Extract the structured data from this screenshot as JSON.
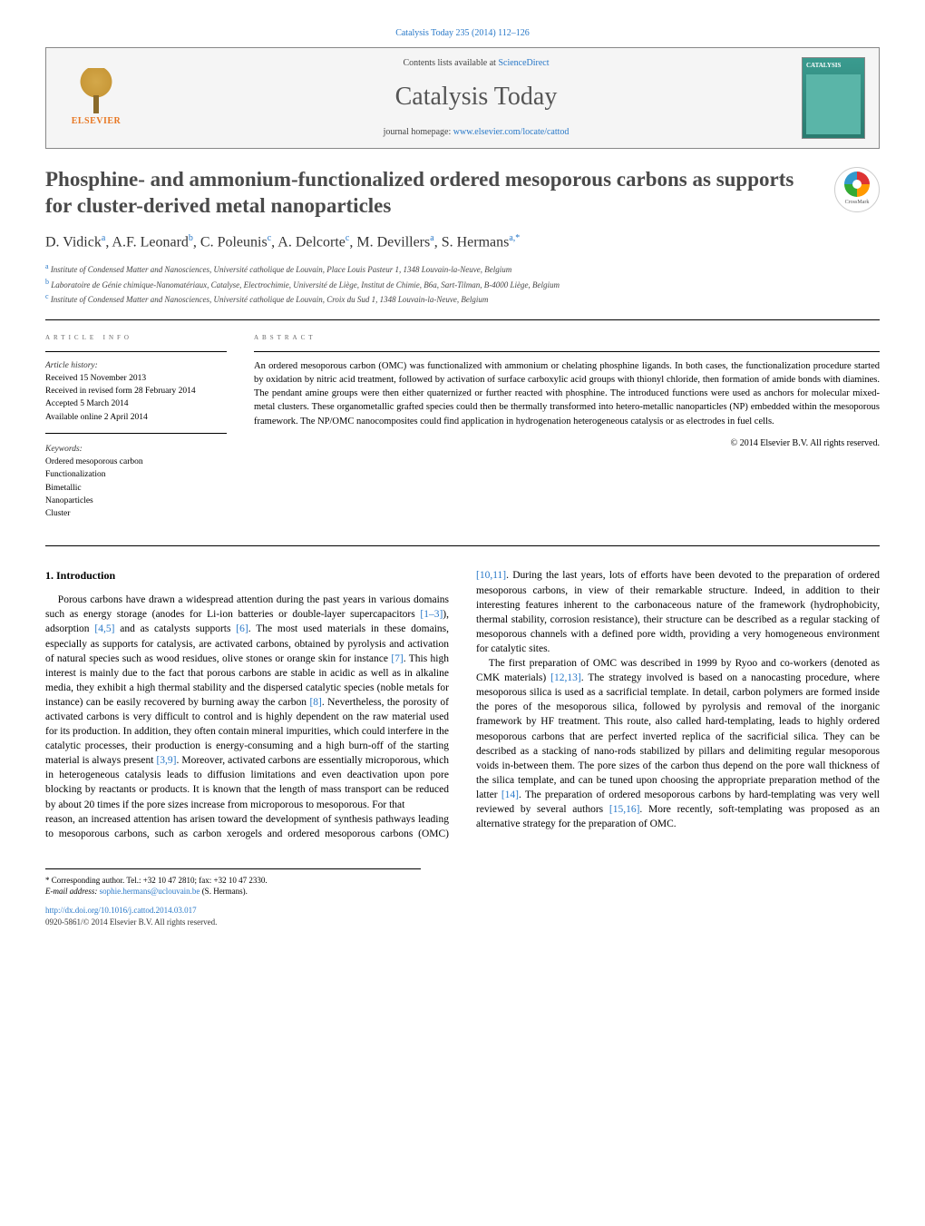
{
  "journal": {
    "citation": "Catalysis Today 235 (2014) 112–126",
    "contents_prefix": "Contents lists available at ",
    "contents_link": "ScienceDirect",
    "name": "Catalysis Today",
    "homepage_prefix": "journal homepage: ",
    "homepage_url": "www.elsevier.com/locate/cattod",
    "publisher": "ELSEVIER",
    "cover_label": "CATALYSIS"
  },
  "crossmark": {
    "label": "CrossMark"
  },
  "title": "Phosphine- and ammonium-functionalized ordered mesoporous carbons as supports for cluster-derived metal nanoparticles",
  "authors_html": "D. Vidick<sup>a</sup>, A.F. Leonard<sup>b</sup>, C. Poleunis<sup>c</sup>, A. Delcorte<sup>c</sup>, M. Devillers<sup>a</sup>, S. Hermans<sup>a,*</sup>",
  "affiliations": [
    {
      "marker": "a",
      "text": "Institute of Condensed Matter and Nanosciences, Université catholique de Louvain, Place Louis Pasteur 1, 1348 Louvain-la-Neuve, Belgium"
    },
    {
      "marker": "b",
      "text": "Laboratoire de Génie chimique-Nanomatériaux, Catalyse, Electrochimie, Université de Liège, Institut de Chimie, B6a, Sart-Tilman, B-4000 Liège, Belgium"
    },
    {
      "marker": "c",
      "text": "Institute of Condensed Matter and Nanosciences, Université catholique de Louvain, Croix du Sud 1, 1348 Louvain-la-Neuve, Belgium"
    }
  ],
  "article_info": {
    "heading": "article info",
    "history_label": "Article history:",
    "history": [
      "Received 15 November 2013",
      "Received in revised form 28 February 2014",
      "Accepted 5 March 2014",
      "Available online 2 April 2014"
    ],
    "keywords_label": "Keywords:",
    "keywords": [
      "Ordered mesoporous carbon",
      "Functionalization",
      "Bimetallic",
      "Nanoparticles",
      "Cluster"
    ]
  },
  "abstract": {
    "heading": "abstract",
    "text": "An ordered mesoporous carbon (OMC) was functionalized with ammonium or chelating phosphine ligands. In both cases, the functionalization procedure started by oxidation by nitric acid treatment, followed by activation of surface carboxylic acid groups with thionyl chloride, then formation of amide bonds with diamines. The pendant amine groups were then either quaternized or further reacted with phosphine. The introduced functions were used as anchors for molecular mixed-metal clusters. These organometallic grafted species could then be thermally transformed into hetero-metallic nanoparticles (NP) embedded within the mesoporous framework. The NP/OMC nanocomposites could find application in hydrogenation heterogeneous catalysis or as electrodes in fuel cells.",
    "copyright": "© 2014 Elsevier B.V. All rights reserved."
  },
  "body": {
    "section_heading": "1. Introduction",
    "para1": "Porous carbons have drawn a widespread attention during the past years in various domains such as energy storage (anodes for Li-ion batteries or double-layer supercapacitors [1–3]), adsorption [4,5] and as catalysts supports [6]. The most used materials in these domains, especially as supports for catalysis, are activated carbons, obtained by pyrolysis and activation of natural species such as wood residues, olive stones or orange skin for instance [7]. This high interest is mainly due to the fact that porous carbons are stable in acidic as well as in alkaline media, they exhibit a high thermal stability and the dispersed catalytic species (noble metals for instance) can be easily recovered by burning away the carbon [8]. Nevertheless, the porosity of activated carbons is very difficult to control and is highly dependent on the raw material used for its production. In addition, they often contain mineral impurities, which could interfere in the catalytic processes, their production is energy-consuming and a high burn-off of the starting material is always present [3,9]. Moreover, activated carbons are essentially microporous, which in heterogeneous catalysis leads to diffusion limitations and even deactivation upon pore blocking by reactants or products. It is known that the length of mass transport can be reduced by about 20 times if the pore sizes increase from microporous to mesoporous. For that",
    "para2": "reason, an increased attention has arisen toward the development of synthesis pathways leading to mesoporous carbons, such as carbon xerogels and ordered mesoporous carbons (OMC) [10,11]. During the last years, lots of efforts have been devoted to the preparation of ordered mesoporous carbons, in view of their remarkable structure. Indeed, in addition to their interesting features inherent to the carbonaceous nature of the framework (hydrophobicity, thermal stability, corrosion resistance), their structure can be described as a regular stacking of mesoporous channels with a defined pore width, providing a very homogeneous environment for catalytic sites.",
    "para3": "The first preparation of OMC was described in 1999 by Ryoo and co-workers (denoted as CMK materials) [12,13]. The strategy involved is based on a nanocasting procedure, where mesoporous silica is used as a sacrificial template. In detail, carbon polymers are formed inside the pores of the mesoporous silica, followed by pyrolysis and removal of the inorganic framework by HF treatment. This route, also called hard-templating, leads to highly ordered mesoporous carbons that are perfect inverted replica of the sacrificial silica. They can be described as a stacking of nano-rods stabilized by pillars and delimiting regular mesoporous voids in-between them. The pore sizes of the carbon thus depend on the pore wall thickness of the silica template, and can be tuned upon choosing the appropriate preparation method of the latter [14]. The preparation of ordered mesoporous carbons by hard-templating was very well reviewed by several authors [15,16]. More recently, soft-templating was proposed as an alternative strategy for the preparation of OMC."
  },
  "footer": {
    "corresponding": "* Corresponding author. Tel.: +32 10 47 2810; fax: +32 10 47 2330.",
    "email_label": "E-mail address: ",
    "email": "sophie.hermans@uclouvain.be",
    "email_suffix": " (S. Hermans).",
    "doi": "http://dx.doi.org/10.1016/j.cattod.2014.03.017",
    "issn_copyright": "0920-5861/© 2014 Elsevier B.V. All rights reserved."
  },
  "refs": {
    "r1": "[1–3]",
    "r4": "[4,5]",
    "r6": "[6]",
    "r7": "[7]",
    "r8": "[8]",
    "r39": "[3,9]",
    "r10": "[10,11]",
    "r12": "[12,13]",
    "r14": "[14]",
    "r15": "[15,16]"
  },
  "colors": {
    "link": "#2878c8",
    "elsevier_orange": "#e87722",
    "journal_cover": "#3a9b8f",
    "text": "#000000",
    "heading_gray": "#666666"
  }
}
